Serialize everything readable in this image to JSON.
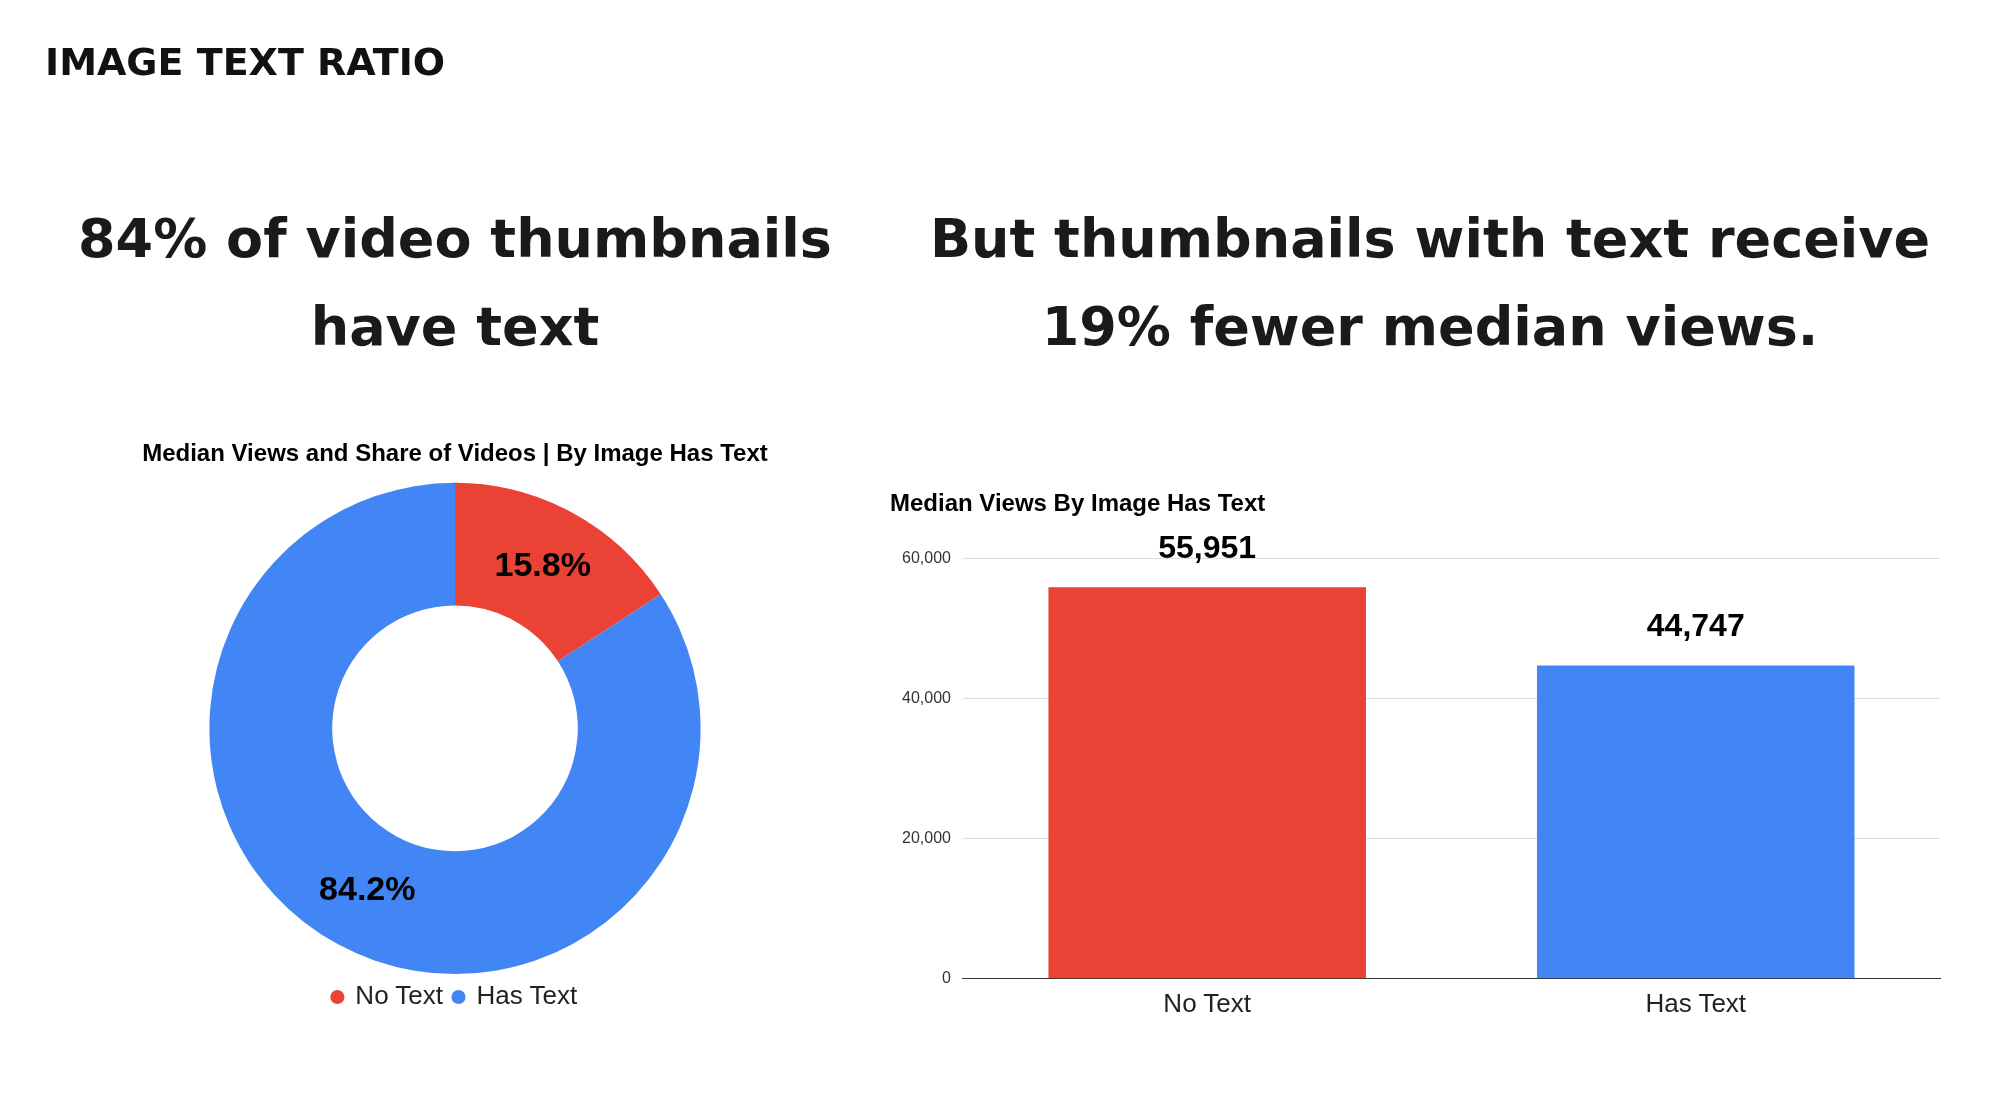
{
  "chart_data": [
    {
      "type": "other",
      "title": "IMAGE TEXT RATIO"
    },
    {
      "type": "donut",
      "title": "Median Views and Share of Videos | By Image Has Text",
      "annotations": [
        "84% of video thumbnails have text"
      ],
      "categories": [
        "No Text",
        "Has Text"
      ],
      "values": [
        15.8,
        84.2
      ],
      "value_labels": [
        "15.8%",
        "84.2%"
      ],
      "colors": [
        "#ea4335",
        "#4285f4"
      ],
      "legend": "bottom"
    },
    {
      "type": "bar",
      "title": "Median Views By Image Has Text",
      "annotations": [
        "But thumbnails with text receive 19% fewer median views."
      ],
      "categories": [
        "No Text",
        "Has Text"
      ],
      "values": [
        55951,
        44747
      ],
      "colors": [
        "#ea4335",
        "#4285f4"
      ],
      "ylim": [
        0,
        60000
      ],
      "yticks": [
        {
          "value": 0,
          "label": "0"
        },
        {
          "value": 20000,
          "label": "20,000"
        },
        {
          "value": 40000,
          "label": "40,000"
        },
        {
          "value": 60000,
          "label": "60,000"
        }
      ],
      "grid": "y",
      "value_labels": [
        "55,951",
        "44,747"
      ],
      "legend": false
    }
  ]
}
